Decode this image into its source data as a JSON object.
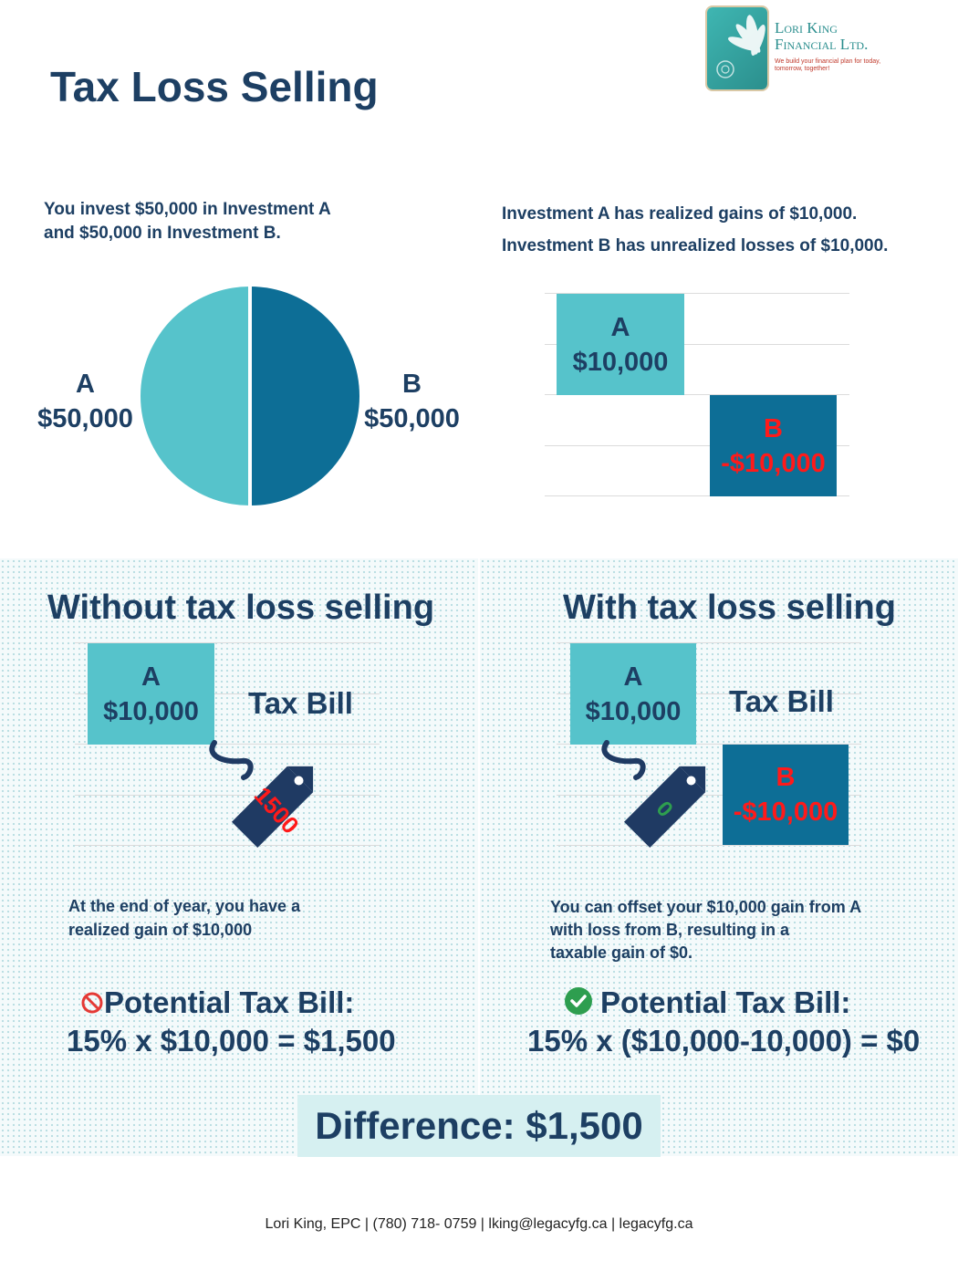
{
  "title": "Tax Loss Selling",
  "logo": {
    "name_line1": "Lori King",
    "name_line2": "Financial Ltd.",
    "tagline": "We build your financial plan for today, tomorrow, together!"
  },
  "intro_left": {
    "line1": "You invest $50,000 in Investment A",
    "line2": "and $50,000 in Investment B."
  },
  "intro_right": {
    "line1": "Investment A has realized gains of $10,000.",
    "line2": "Investment B has unrealized losses of $10,000."
  },
  "pie": {
    "a_label": "A",
    "a_value": "$50,000",
    "b_label": "B",
    "b_value": "$50,000",
    "a_share": 0.5,
    "b_share": 0.5,
    "a_color": "#56c3cb",
    "b_color": "#0d6e96"
  },
  "gain_loss_chart": {
    "a_label": "A",
    "a_value": "$10,000",
    "b_label": "B",
    "b_value": "-$10,000"
  },
  "without": {
    "heading": "Without tax loss selling",
    "a_label": "A",
    "a_value": "$10,000",
    "tax_bill_label": "Tax Bill",
    "tag_amount": "1500",
    "description_line1": "At the end of year, you have a",
    "description_line2": "realized gain of $10,000",
    "potential_label": "Potential Tax Bill:",
    "formula": "15% x $10,000 = $1,500",
    "status_icon": "prohibited-icon"
  },
  "with": {
    "heading": "With tax loss selling",
    "a_label": "A",
    "a_value": "$10,000",
    "tax_bill_label": "Tax Bill",
    "b_label": "B",
    "b_value": "-$10,000",
    "tag_amount": "0",
    "description_line1": "You can offset your $10,000 gain from A",
    "description_line2": "with loss from B, resulting in a",
    "description_line3": "taxable gain of $0.",
    "potential_label": "Potential Tax Bill:",
    "formula": "15% x ($10,000-10,000) = $0",
    "status_icon": "checkmark-icon"
  },
  "difference": "Difference: $1,500",
  "footer": "Lori King, EPC | (780) 718- 0759 | lking@legacyfg.ca | legacyfg.ca",
  "colors": {
    "navy": "#1d3f63",
    "light_teal": "#56c3cb",
    "dark_teal": "#0d6e96",
    "loss_red": "#ff1a1a",
    "tag_navy": "#1f3a63"
  }
}
